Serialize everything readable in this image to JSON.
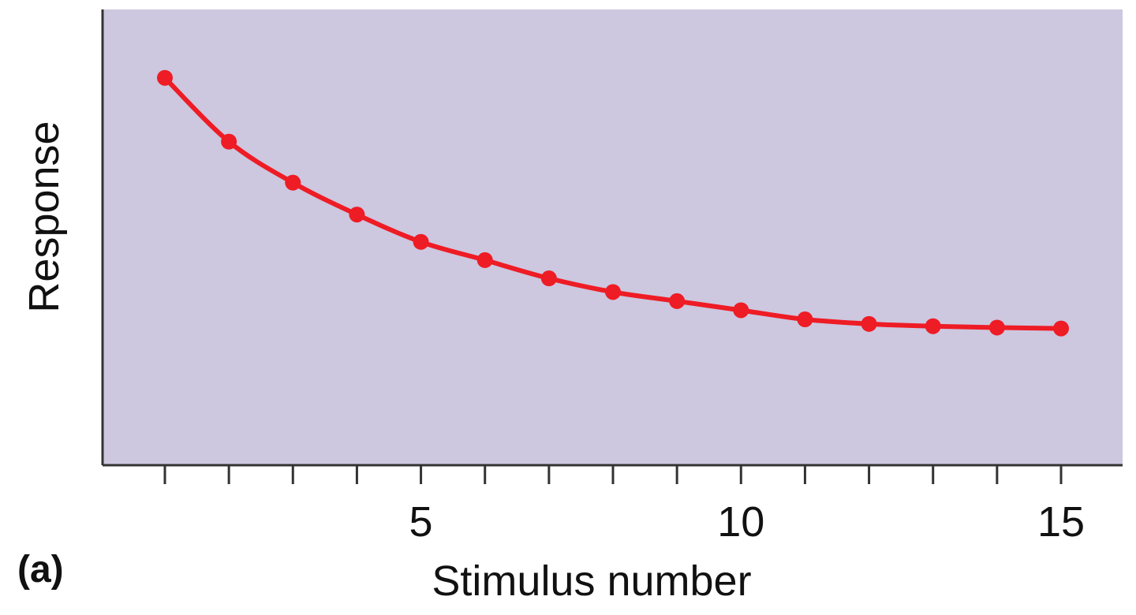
{
  "panel_label": "(a)",
  "colors": {
    "plot_background": "#cdc7df",
    "series": "#ee1c25",
    "axis": "#333333"
  },
  "chart_data": {
    "type": "line",
    "xlabel": "Stimulus number",
    "ylabel": "Response",
    "xlim": [
      0,
      16
    ],
    "ylim": [
      0,
      1
    ],
    "x_tick_positions": [
      1,
      2,
      3,
      4,
      5,
      6,
      7,
      8,
      9,
      10,
      11,
      12,
      13,
      14,
      15
    ],
    "x_tick_labels": [
      {
        "x": 5,
        "label": "5"
      },
      {
        "x": 10,
        "label": "10"
      },
      {
        "x": 15,
        "label": "15"
      }
    ],
    "y_tick_labels": [],
    "grid": false,
    "legend": "none",
    "series": [
      {
        "x": [
          1,
          2,
          3,
          4,
          5,
          6,
          7,
          8,
          9,
          10,
          11,
          12,
          13,
          14,
          15
        ],
        "values": [
          0.85,
          0.71,
          0.62,
          0.55,
          0.49,
          0.45,
          0.41,
          0.38,
          0.36,
          0.34,
          0.32,
          0.31,
          0.305,
          0.302,
          0.3
        ]
      }
    ]
  }
}
